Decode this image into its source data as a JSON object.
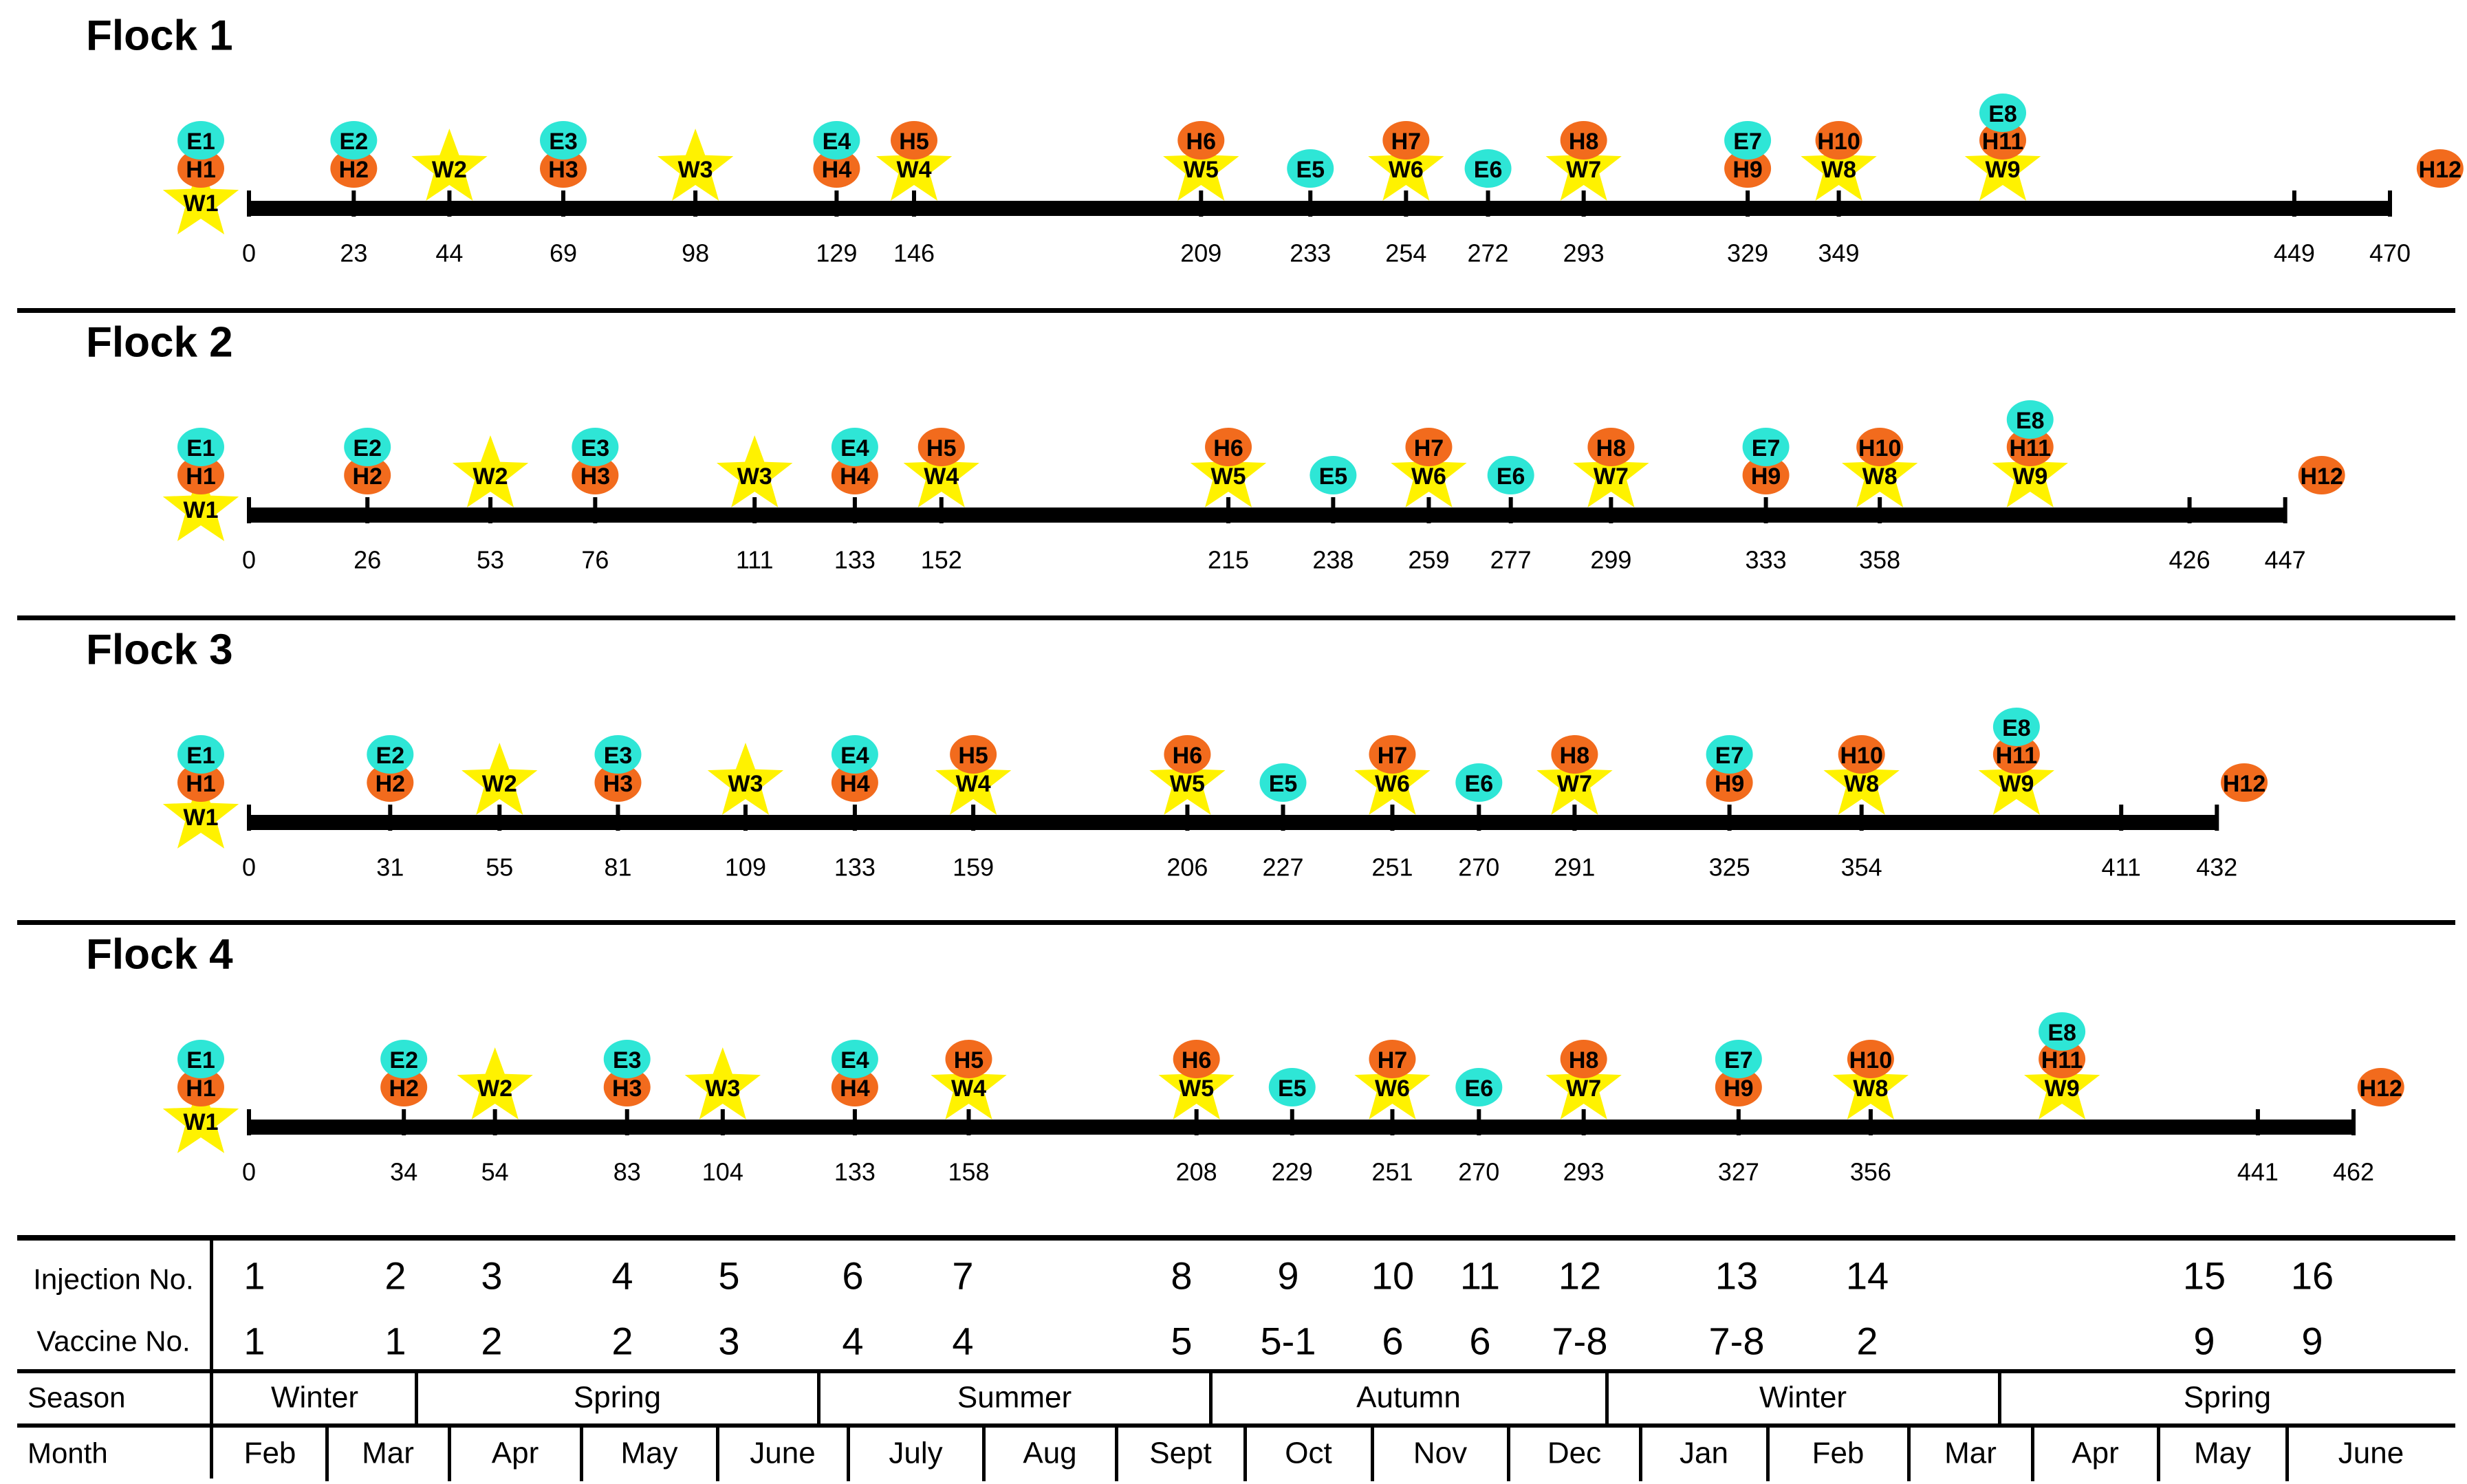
{
  "colors": {
    "hunting": "#F26B1D",
    "estrus": "#2EE6D6",
    "water": "#FFF200",
    "line": "#000000"
  },
  "legend_names": {
    "H": "orange-circle",
    "E": "cyan-circle",
    "W": "yellow-star"
  },
  "flocks": [
    {
      "title": "Flock 1",
      "ticks": [
        "0",
        "23",
        "44",
        "69",
        "98",
        "129",
        "146",
        "209",
        "233",
        "254",
        "272",
        "293",
        "329",
        "349",
        "449",
        "470"
      ],
      "markers": [
        {
          "label": "W1",
          "kind": "W",
          "tick": "0",
          "level": 0
        },
        {
          "label": "H1",
          "kind": "H",
          "tick": "0",
          "level": 1
        },
        {
          "label": "E1",
          "kind": "E",
          "tick": "0",
          "level": 2
        },
        {
          "label": "H2",
          "kind": "H",
          "tick": "23",
          "level": 1
        },
        {
          "label": "E2",
          "kind": "E",
          "tick": "23",
          "level": 2
        },
        {
          "label": "W2",
          "kind": "W",
          "tick": "44",
          "level": 1
        },
        {
          "label": "H3",
          "kind": "H",
          "tick": "69",
          "level": 1
        },
        {
          "label": "E3",
          "kind": "E",
          "tick": "69",
          "level": 2
        },
        {
          "label": "W3",
          "kind": "W",
          "tick": "98",
          "level": 1
        },
        {
          "label": "H4",
          "kind": "H",
          "tick": "129",
          "level": 1
        },
        {
          "label": "E4",
          "kind": "E",
          "tick": "129",
          "level": 2
        },
        {
          "label": "W4",
          "kind": "W",
          "tick": "146",
          "level": 1
        },
        {
          "label": "H5",
          "kind": "H",
          "tick": "146",
          "level": 2
        },
        {
          "label": "W5",
          "kind": "W",
          "tick": "209",
          "level": 1
        },
        {
          "label": "H6",
          "kind": "H",
          "tick": "209",
          "level": 2
        },
        {
          "label": "E5",
          "kind": "E",
          "tick": "233",
          "level": 1
        },
        {
          "label": "W6",
          "kind": "W",
          "tick": "254",
          "level": 1
        },
        {
          "label": "H7",
          "kind": "H",
          "tick": "254",
          "level": 2
        },
        {
          "label": "E6",
          "kind": "E",
          "tick": "272",
          "level": 1
        },
        {
          "label": "W7",
          "kind": "W",
          "tick": "293",
          "level": 1
        },
        {
          "label": "H8",
          "kind": "H",
          "tick": "293",
          "level": 2
        },
        {
          "label": "H9",
          "kind": "H",
          "tick": "329",
          "level": 1
        },
        {
          "label": "E7",
          "kind": "E",
          "tick": "329",
          "level": 2
        },
        {
          "label": "W8",
          "kind": "W",
          "tick": "349",
          "level": 1
        },
        {
          "label": "H10",
          "kind": "H",
          "tick": "349",
          "level": 2
        },
        {
          "label": "W9",
          "kind": "W",
          "pos": 385,
          "level": 1
        },
        {
          "label": "H11",
          "kind": "H",
          "pos": 385,
          "level": 2
        },
        {
          "label": "E8",
          "kind": "E",
          "pos": 385,
          "level": 3
        },
        {
          "label": "H12",
          "kind": "H",
          "pos": 481,
          "level": 1
        }
      ]
    },
    {
      "title": "Flock 2",
      "ticks": [
        "0",
        "26",
        "53",
        "76",
        "111",
        "133",
        "152",
        "215",
        "238",
        "259",
        "277",
        "299",
        "333",
        "358",
        "426",
        "447"
      ],
      "markers": [
        {
          "label": "W1",
          "kind": "W",
          "tick": "0",
          "level": 0
        },
        {
          "label": "H1",
          "kind": "H",
          "tick": "0",
          "level": 1
        },
        {
          "label": "E1",
          "kind": "E",
          "tick": "0",
          "level": 2
        },
        {
          "label": "H2",
          "kind": "H",
          "tick": "26",
          "level": 1
        },
        {
          "label": "E2",
          "kind": "E",
          "tick": "26",
          "level": 2
        },
        {
          "label": "W2",
          "kind": "W",
          "tick": "53",
          "level": 1
        },
        {
          "label": "H3",
          "kind": "H",
          "tick": "76",
          "level": 1
        },
        {
          "label": "E3",
          "kind": "E",
          "tick": "76",
          "level": 2
        },
        {
          "label": "W3",
          "kind": "W",
          "tick": "111",
          "level": 1
        },
        {
          "label": "H4",
          "kind": "H",
          "tick": "133",
          "level": 1
        },
        {
          "label": "E4",
          "kind": "E",
          "tick": "133",
          "level": 2
        },
        {
          "label": "W4",
          "kind": "W",
          "tick": "152",
          "level": 1
        },
        {
          "label": "H5",
          "kind": "H",
          "tick": "152",
          "level": 2
        },
        {
          "label": "W5",
          "kind": "W",
          "tick": "215",
          "level": 1
        },
        {
          "label": "H6",
          "kind": "H",
          "tick": "215",
          "level": 2
        },
        {
          "label": "E5",
          "kind": "E",
          "tick": "238",
          "level": 1
        },
        {
          "label": "W6",
          "kind": "W",
          "tick": "259",
          "level": 1
        },
        {
          "label": "H7",
          "kind": "H",
          "tick": "259",
          "level": 2
        },
        {
          "label": "E6",
          "kind": "E",
          "tick": "277",
          "level": 1
        },
        {
          "label": "W7",
          "kind": "W",
          "tick": "299",
          "level": 1
        },
        {
          "label": "H8",
          "kind": "H",
          "tick": "299",
          "level": 2
        },
        {
          "label": "H9",
          "kind": "H",
          "tick": "333",
          "level": 1
        },
        {
          "label": "E7",
          "kind": "E",
          "tick": "333",
          "level": 2
        },
        {
          "label": "W8",
          "kind": "W",
          "tick": "358",
          "level": 1
        },
        {
          "label": "H10",
          "kind": "H",
          "tick": "358",
          "level": 2
        },
        {
          "label": "W9",
          "kind": "W",
          "pos": 391,
          "level": 1
        },
        {
          "label": "H11",
          "kind": "H",
          "pos": 391,
          "level": 2
        },
        {
          "label": "E8",
          "kind": "E",
          "pos": 391,
          "level": 3
        },
        {
          "label": "H12",
          "kind": "H",
          "pos": 455,
          "level": 1
        }
      ]
    },
    {
      "title": "Flock 3",
      "ticks": [
        "0",
        "31",
        "55",
        "81",
        "109",
        "133",
        "159",
        "206",
        "227",
        "251",
        "270",
        "291",
        "325",
        "354",
        "411",
        "432"
      ],
      "markers": [
        {
          "label": "W1",
          "kind": "W",
          "tick": "0",
          "level": 0
        },
        {
          "label": "H1",
          "kind": "H",
          "tick": "0",
          "level": 1
        },
        {
          "label": "E1",
          "kind": "E",
          "tick": "0",
          "level": 2
        },
        {
          "label": "H2",
          "kind": "H",
          "tick": "31",
          "level": 1
        },
        {
          "label": "E2",
          "kind": "E",
          "tick": "31",
          "level": 2
        },
        {
          "label": "W2",
          "kind": "W",
          "tick": "55",
          "level": 1
        },
        {
          "label": "H3",
          "kind": "H",
          "tick": "81",
          "level": 1
        },
        {
          "label": "E3",
          "kind": "E",
          "tick": "81",
          "level": 2
        },
        {
          "label": "W3",
          "kind": "W",
          "tick": "109",
          "level": 1
        },
        {
          "label": "H4",
          "kind": "H",
          "tick": "133",
          "level": 1
        },
        {
          "label": "E4",
          "kind": "E",
          "tick": "133",
          "level": 2
        },
        {
          "label": "W4",
          "kind": "W",
          "tick": "159",
          "level": 1
        },
        {
          "label": "H5",
          "kind": "H",
          "tick": "159",
          "level": 2
        },
        {
          "label": "W5",
          "kind": "W",
          "tick": "206",
          "level": 1
        },
        {
          "label": "H6",
          "kind": "H",
          "tick": "206",
          "level": 2
        },
        {
          "label": "E5",
          "kind": "E",
          "tick": "227",
          "level": 1
        },
        {
          "label": "W6",
          "kind": "W",
          "tick": "251",
          "level": 1
        },
        {
          "label": "H7",
          "kind": "H",
          "tick": "251",
          "level": 2
        },
        {
          "label": "E6",
          "kind": "E",
          "tick": "270",
          "level": 1
        },
        {
          "label": "W7",
          "kind": "W",
          "tick": "291",
          "level": 1
        },
        {
          "label": "H8",
          "kind": "H",
          "tick": "291",
          "level": 2
        },
        {
          "label": "H9",
          "kind": "H",
          "tick": "325",
          "level": 1
        },
        {
          "label": "E7",
          "kind": "E",
          "tick": "325",
          "level": 2
        },
        {
          "label": "W8",
          "kind": "W",
          "tick": "354",
          "level": 1
        },
        {
          "label": "H10",
          "kind": "H",
          "tick": "354",
          "level": 2
        },
        {
          "label": "W9",
          "kind": "W",
          "pos": 388,
          "level": 1
        },
        {
          "label": "H11",
          "kind": "H",
          "pos": 388,
          "level": 2
        },
        {
          "label": "E8",
          "kind": "E",
          "pos": 388,
          "level": 3
        },
        {
          "label": "H12",
          "kind": "H",
          "pos": 438,
          "level": 1
        }
      ]
    },
    {
      "title": "Flock 4",
      "ticks": [
        "0",
        "34",
        "54",
        "83",
        "104",
        "133",
        "158",
        "208",
        "229",
        "251",
        "270",
        "293",
        "327",
        "356",
        "441",
        "462"
      ],
      "markers": [
        {
          "label": "W1",
          "kind": "W",
          "tick": "0",
          "level": 0
        },
        {
          "label": "H1",
          "kind": "H",
          "tick": "0",
          "level": 1
        },
        {
          "label": "E1",
          "kind": "E",
          "tick": "0",
          "level": 2
        },
        {
          "label": "H2",
          "kind": "H",
          "tick": "34",
          "level": 1
        },
        {
          "label": "E2",
          "kind": "E",
          "tick": "34",
          "level": 2
        },
        {
          "label": "W2",
          "kind": "W",
          "tick": "54",
          "level": 1
        },
        {
          "label": "H3",
          "kind": "H",
          "tick": "83",
          "level": 1
        },
        {
          "label": "E3",
          "kind": "E",
          "tick": "83",
          "level": 2
        },
        {
          "label": "W3",
          "kind": "W",
          "tick": "104",
          "level": 1
        },
        {
          "label": "H4",
          "kind": "H",
          "tick": "133",
          "level": 1
        },
        {
          "label": "E4",
          "kind": "E",
          "tick": "133",
          "level": 2
        },
        {
          "label": "W4",
          "kind": "W",
          "tick": "158",
          "level": 1
        },
        {
          "label": "H5",
          "kind": "H",
          "tick": "158",
          "level": 2
        },
        {
          "label": "W5",
          "kind": "W",
          "tick": "208",
          "level": 1
        },
        {
          "label": "H6",
          "kind": "H",
          "tick": "208",
          "level": 2
        },
        {
          "label": "E5",
          "kind": "E",
          "tick": "229",
          "level": 1
        },
        {
          "label": "W6",
          "kind": "W",
          "tick": "251",
          "level": 1
        },
        {
          "label": "H7",
          "kind": "H",
          "tick": "251",
          "level": 2
        },
        {
          "label": "E6",
          "kind": "E",
          "tick": "270",
          "level": 1
        },
        {
          "label": "W7",
          "kind": "W",
          "tick": "293",
          "level": 1
        },
        {
          "label": "H8",
          "kind": "H",
          "tick": "293",
          "level": 2
        },
        {
          "label": "H9",
          "kind": "H",
          "tick": "327",
          "level": 1
        },
        {
          "label": "E7",
          "kind": "E",
          "tick": "327",
          "level": 2
        },
        {
          "label": "W8",
          "kind": "W",
          "tick": "356",
          "level": 1
        },
        {
          "label": "H10",
          "kind": "H",
          "tick": "356",
          "level": 2
        },
        {
          "label": "W9",
          "kind": "W",
          "pos": 398,
          "level": 1
        },
        {
          "label": "H11",
          "kind": "H",
          "pos": 398,
          "level": 2
        },
        {
          "label": "E8",
          "kind": "E",
          "pos": 398,
          "level": 3
        },
        {
          "label": "H12",
          "kind": "H",
          "pos": 468,
          "level": 1
        }
      ]
    }
  ],
  "table": {
    "injection_label": "Injection No.",
    "vaccine_label": "Vaccine No.",
    "season_label": "Season",
    "month_label": "Month",
    "injections": [
      "1",
      "2",
      "3",
      "4",
      "5",
      "6",
      "7",
      "8",
      "9",
      "10",
      "11",
      "12",
      "13",
      "14",
      "15",
      "16"
    ],
    "vaccines": [
      "1",
      "1",
      "2",
      "2",
      "3",
      "4",
      "4",
      "5",
      "5-1",
      "6",
      "6",
      "7-8",
      "7-8",
      "2",
      "9",
      "9"
    ],
    "seasons": [
      "Winter",
      "Spring",
      "Summer",
      "Autumn",
      "Winter",
      "Spring"
    ],
    "months": [
      "Feb",
      "Mar",
      "Apr",
      "May",
      "June",
      "July",
      "Aug",
      "Sept",
      "Oct",
      "Nov",
      "Dec",
      "Jan",
      "Feb",
      "Mar",
      "Apr",
      "May",
      "June"
    ]
  }
}
